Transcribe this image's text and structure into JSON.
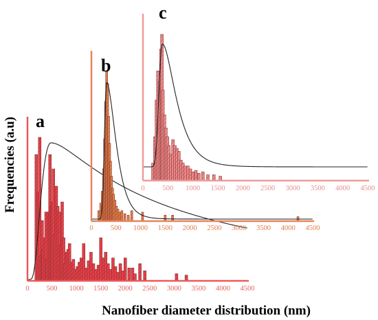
{
  "chart_data": {
    "type": "bar",
    "xlabel": "Nanofiber diameter distribution (nm)",
    "ylabel": "Frequencies (a.u)",
    "grid": false,
    "colors": {
      "a_axis": "#ea5a5a",
      "a_bar": "#e8414a",
      "a_tick": "#e26060",
      "b_axis": "#e8835e",
      "b_bar": "#e48348",
      "b_tick": "#e07a4c",
      "c_axis": "#ef9b9b",
      "c_bar": "#ee8a8a",
      "c_tick": "#e88c8c",
      "fit": "#222222"
    },
    "panels": [
      {
        "name": "a",
        "xlim": [
          0,
          4500
        ],
        "xticks": [
          "0",
          "500",
          "1000",
          "1500",
          "2000",
          "2500",
          "3000",
          "3500",
          "4000",
          "4500"
        ],
        "ylim": [
          0,
          1
        ],
        "bins_nm": [
          180,
          220,
          250,
          280,
          300,
          320,
          350,
          380,
          400,
          430,
          460,
          480,
          500,
          530,
          560,
          590,
          620,
          650,
          680,
          710,
          740,
          770,
          800,
          830,
          860,
          900,
          940,
          980,
          1020,
          1060,
          1100,
          1150,
          1200,
          1250,
          1300,
          1350,
          1400,
          1450,
          1500,
          1550,
          1600,
          1650,
          1700,
          1750,
          1800,
          1850,
          1900,
          1950,
          2000,
          2080,
          2150,
          2200,
          2300,
          2400,
          3050,
          3250
        ],
        "frequencies": [
          0.88,
          0.62,
          1.0,
          0.18,
          0.42,
          0.22,
          0.3,
          0.48,
          0.15,
          0.48,
          0.88,
          0.52,
          0.55,
          0.78,
          0.32,
          0.66,
          0.52,
          0.48,
          0.25,
          0.55,
          0.3,
          0.12,
          0.2,
          0.22,
          0.26,
          0.13,
          0.15,
          0.08,
          0.1,
          0.13,
          0.16,
          0.26,
          0.09,
          0.14,
          0.2,
          0.12,
          0.08,
          0.11,
          0.3,
          0.16,
          0.2,
          0.12,
          0.08,
          0.16,
          0.1,
          0.06,
          0.12,
          0.07,
          0.16,
          0.09,
          0.09,
          0.05,
          0.12,
          0.07,
          0.05,
          0.04
        ],
        "fit_peak_nm": 480
      },
      {
        "name": "b",
        "xlim": [
          0,
          4500
        ],
        "xticks": [
          "0",
          "500",
          "1000",
          "1500",
          "2000",
          "2500",
          "3000",
          "3500",
          "4000",
          "4500"
        ],
        "ylim": [
          0,
          1
        ],
        "bins_nm": [
          150,
          190,
          220,
          250,
          270,
          290,
          310,
          330,
          350,
          370,
          390,
          410,
          430,
          450,
          480,
          510,
          540,
          580,
          620,
          680,
          750,
          820,
          1040,
          1500,
          1650,
          4200
        ],
        "frequencies": [
          0.07,
          0.12,
          0.2,
          0.35,
          0.55,
          0.8,
          1.0,
          0.92,
          0.7,
          0.52,
          0.4,
          0.3,
          0.22,
          0.18,
          0.14,
          0.1,
          0.08,
          0.06,
          0.07,
          0.05,
          0.04,
          0.07,
          0.06,
          0.04,
          0.04,
          0.03
        ],
        "fit_peak_nm": 310
      },
      {
        "name": "c",
        "xlim": [
          0,
          4500
        ],
        "xticks": [
          "0",
          "500",
          "1000",
          "1500",
          "2000",
          "2500",
          "3000",
          "3500",
          "4000",
          "4500"
        ],
        "ylim": [
          0,
          1
        ],
        "bins_nm": [
          200,
          240,
          270,
          300,
          330,
          360,
          380,
          400,
          430,
          460,
          490,
          520,
          560,
          600,
          640,
          680,
          720,
          760,
          800,
          850,
          900,
          950,
          1000,
          1060,
          1120,
          1200,
          1300,
          1420,
          1550
        ],
        "frequencies": [
          0.12,
          0.3,
          0.55,
          0.75,
          0.68,
          0.9,
          1.0,
          0.62,
          0.45,
          0.36,
          0.3,
          0.24,
          0.18,
          0.28,
          0.24,
          0.22,
          0.2,
          0.14,
          0.12,
          0.1,
          0.1,
          0.08,
          0.06,
          0.07,
          0.05,
          0.06,
          0.04,
          0.04,
          0.03
        ],
        "fit_peak_nm": 390
      }
    ]
  }
}
